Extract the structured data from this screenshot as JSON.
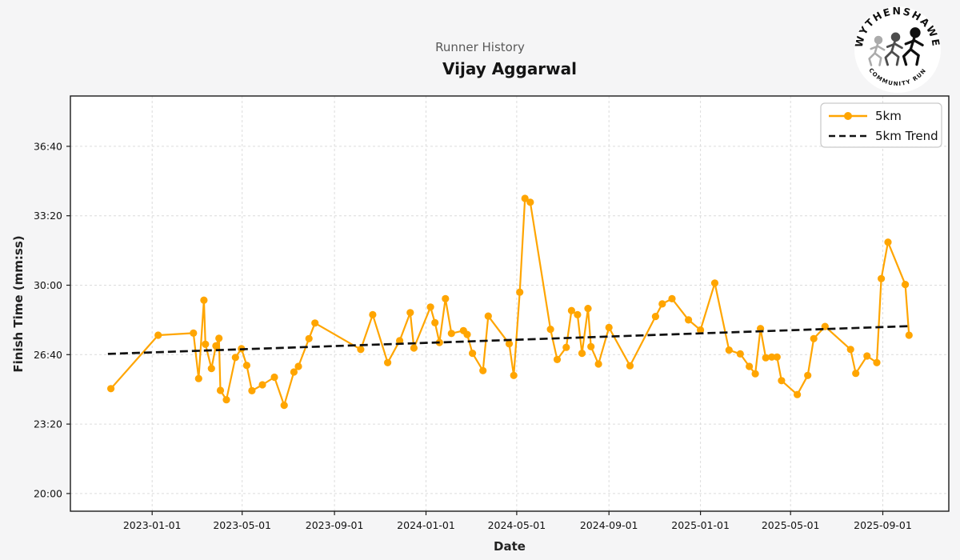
{
  "header": {
    "suptitle": "Runner History",
    "title": "Vijay Aggarwal"
  },
  "logo": {
    "arc_top": "WYTHENSHAWE",
    "arc_bottom": "COMMUNITY RUN"
  },
  "colors": {
    "series_orange": "#FFA500",
    "trend_black": "#111111",
    "figure_bg": "#f5f5f6",
    "plot_bg": "#ffffff",
    "grid": "#dcdcdc"
  },
  "chart_data": {
    "type": "line",
    "title": "Vijay Aggarwal",
    "subtitle": "Runner History",
    "xlabel": "Date",
    "ylabel": "Finish Time (mm:ss)",
    "grid": true,
    "legend_position": "upper right",
    "xlim": [
      "2022-09-14",
      "2025-11-28"
    ],
    "ylim": [
      "19:09",
      "39:05"
    ],
    "x_ticks": [
      "2023-01-01",
      "2023-05-01",
      "2023-09-01",
      "2024-01-01",
      "2024-05-01",
      "2024-09-01",
      "2025-01-01",
      "2025-05-01",
      "2025-09-01"
    ],
    "y_ticks": [
      "36:40",
      "33:20",
      "30:00",
      "26:40",
      "23:20",
      "20:00"
    ],
    "series": [
      {
        "name": "5km",
        "color": "#FFA500",
        "marker": "circle",
        "points": [
          [
            "2022-11-07",
            "25:02"
          ],
          [
            "2023-01-09",
            "27:36"
          ],
          [
            "2023-02-25",
            "27:42"
          ],
          [
            "2023-03-04",
            "25:31"
          ],
          [
            "2023-03-11",
            "29:17"
          ],
          [
            "2023-03-13",
            "27:10"
          ],
          [
            "2023-03-21",
            "26:00"
          ],
          [
            "2023-03-27",
            "27:05"
          ],
          [
            "2023-03-31",
            "27:27"
          ],
          [
            "2023-04-02",
            "24:57"
          ],
          [
            "2023-04-10",
            "24:30"
          ],
          [
            "2023-04-22",
            "26:32"
          ],
          [
            "2023-04-30",
            "26:57"
          ],
          [
            "2023-05-07",
            "26:09"
          ],
          [
            "2023-05-14",
            "24:56"
          ],
          [
            "2023-05-28",
            "25:13"
          ],
          [
            "2023-06-13",
            "25:35"
          ],
          [
            "2023-06-26",
            "24:14"
          ],
          [
            "2023-07-09",
            "25:50"
          ],
          [
            "2023-07-15",
            "26:06"
          ],
          [
            "2023-07-29",
            "27:26"
          ],
          [
            "2023-08-06",
            "28:11"
          ],
          [
            "2023-10-06",
            "26:55"
          ],
          [
            "2023-10-22",
            "28:35"
          ],
          [
            "2023-11-11",
            "26:17"
          ],
          [
            "2023-11-27",
            "27:20"
          ],
          [
            "2023-12-11",
            "28:41"
          ],
          [
            "2023-12-16",
            "26:59"
          ],
          [
            "2024-01-07",
            "28:57"
          ],
          [
            "2024-01-13",
            "28:12"
          ],
          [
            "2024-01-19",
            "27:15"
          ],
          [
            "2024-01-27",
            "29:21"
          ],
          [
            "2024-02-04",
            "27:41"
          ],
          [
            "2024-02-20",
            "27:49"
          ],
          [
            "2024-02-25",
            "27:38"
          ],
          [
            "2024-03-03",
            "26:44"
          ],
          [
            "2024-03-17",
            "25:54"
          ],
          [
            "2024-03-24",
            "28:31"
          ],
          [
            "2024-04-21",
            "27:11"
          ],
          [
            "2024-04-27",
            "25:40"
          ],
          [
            "2024-05-05",
            "29:40"
          ],
          [
            "2024-05-12",
            "34:10"
          ],
          [
            "2024-05-19",
            "33:59"
          ],
          [
            "2024-06-15",
            "27:53"
          ],
          [
            "2024-06-24",
            "26:26"
          ],
          [
            "2024-07-06",
            "27:01"
          ],
          [
            "2024-07-13",
            "28:47"
          ],
          [
            "2024-07-21",
            "28:35"
          ],
          [
            "2024-07-27",
            "26:44"
          ],
          [
            "2024-08-04",
            "28:53"
          ],
          [
            "2024-08-08",
            "27:03"
          ],
          [
            "2024-08-18",
            "26:13"
          ],
          [
            "2024-09-01",
            "27:58"
          ],
          [
            "2024-09-29",
            "26:08"
          ],
          [
            "2024-11-02",
            "28:30"
          ],
          [
            "2024-11-11",
            "29:06"
          ],
          [
            "2024-11-24",
            "29:21"
          ],
          [
            "2024-12-16",
            "28:20"
          ],
          [
            "2025-01-01",
            "27:51"
          ],
          [
            "2025-01-20",
            "30:06"
          ],
          [
            "2025-02-08",
            "26:53"
          ],
          [
            "2025-02-23",
            "26:42"
          ],
          [
            "2025-03-07",
            "26:06"
          ],
          [
            "2025-03-15",
            "25:45"
          ],
          [
            "2025-03-22",
            "27:55"
          ],
          [
            "2025-03-29",
            "26:31"
          ],
          [
            "2025-04-06",
            "26:33"
          ],
          [
            "2025-04-13",
            "26:33"
          ],
          [
            "2025-04-19",
            "25:25"
          ],
          [
            "2025-05-10",
            "24:45"
          ],
          [
            "2025-05-24",
            "25:40"
          ],
          [
            "2025-06-01",
            "27:26"
          ],
          [
            "2025-06-16",
            "28:01"
          ],
          [
            "2025-07-20",
            "26:55"
          ],
          [
            "2025-07-27",
            "25:46"
          ],
          [
            "2025-08-11",
            "26:36"
          ],
          [
            "2025-08-24",
            "26:17"
          ],
          [
            "2025-08-30",
            "30:19"
          ],
          [
            "2025-09-08",
            "32:04"
          ],
          [
            "2025-10-01",
            "30:02"
          ],
          [
            "2025-10-06",
            "27:36"
          ]
        ]
      },
      {
        "name": "5km Trend",
        "color": "#111111",
        "style": "dashed",
        "points": [
          [
            "2022-11-03",
            "26:42"
          ],
          [
            "2025-10-05",
            "28:02"
          ]
        ]
      }
    ]
  }
}
